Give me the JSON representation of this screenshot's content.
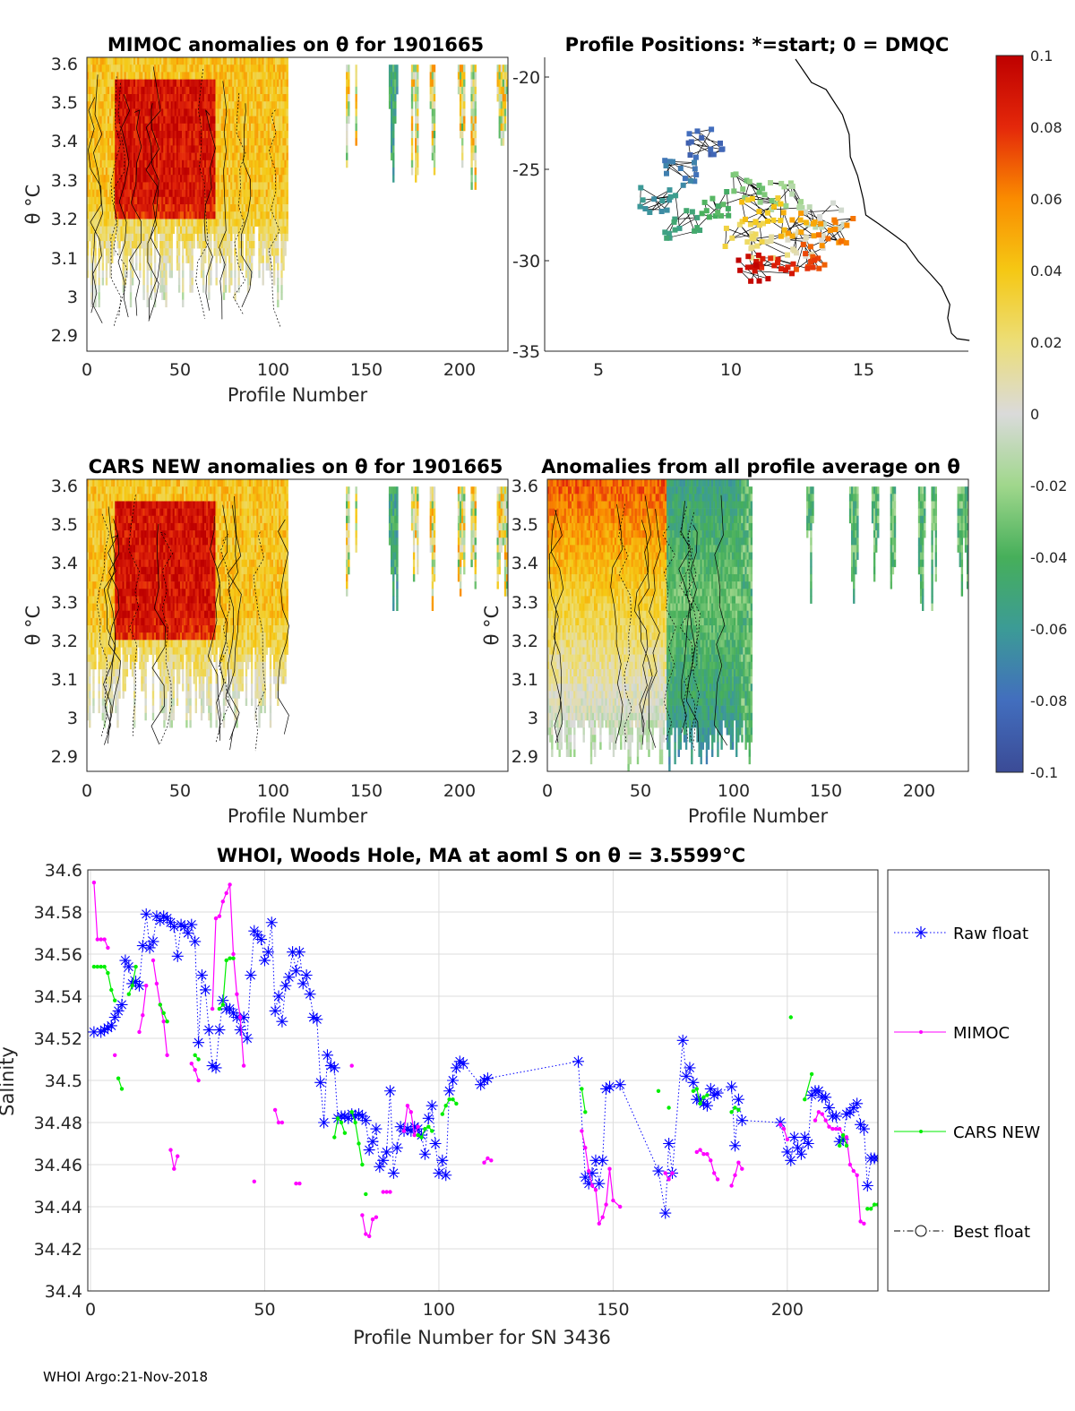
{
  "panels": {
    "mimoc": {
      "title": "MIMOC anomalies on θ  for 1901665",
      "xlabel": "Profile Number",
      "ylabel": "θ °C",
      "xticks": [
        "0",
        "50",
        "100",
        "150",
        "200"
      ],
      "yticks": [
        "3.6",
        "3.5",
        "3.4",
        "3.3",
        "3.2",
        "3.1",
        "3",
        "2.9"
      ]
    },
    "positions": {
      "title": "Profile Positions: *=start; 0 = DMQC",
      "xticks": [
        "5",
        "10",
        "15"
      ],
      "yticks": [
        "-20",
        "-25",
        "-30",
        "-35"
      ]
    },
    "cars": {
      "title": "CARS NEW anomalies on θ for 1901665",
      "xlabel": "Profile Number",
      "ylabel": "θ °C",
      "xticks": [
        "0",
        "50",
        "100",
        "150",
        "200"
      ],
      "yticks": [
        "3.6",
        "3.5",
        "3.4",
        "3.3",
        "3.2",
        "3.1",
        "3",
        "2.9"
      ]
    },
    "allavg": {
      "title": "Anomalies from all profile average on θ",
      "xlabel": "Profile Number",
      "ylabel": "θ °C",
      "xticks": [
        "0",
        "50",
        "100",
        "150",
        "200"
      ],
      "yticks": [
        "3.6",
        "3.5",
        "3.4",
        "3.3",
        "3.2",
        "3.1",
        "3",
        "2.9"
      ]
    }
  },
  "colorbar": {
    "ticks": [
      "0.1",
      "0.08",
      "0.06",
      "0.04",
      "0.02",
      "0",
      "-0.02",
      "-0.04",
      "-0.06",
      "-0.08",
      "-0.1"
    ]
  },
  "footer": "WHOI Argo:21-Nov-2018",
  "chart_data": {
    "type": "line",
    "title": "WHOI, Woods Hole, MA at aoml S on θ = 3.5599°C",
    "xlabel": "Profile Number for SN 3436",
    "ylabel": "Salinity",
    "xlim": [
      0,
      226
    ],
    "ylim": [
      34.4,
      34.6
    ],
    "xticks": [
      "0",
      "50",
      "100",
      "150",
      "200"
    ],
    "yticks": [
      "34.6",
      "34.58",
      "34.56",
      "34.54",
      "34.52",
      "34.5",
      "34.48",
      "34.46",
      "34.44",
      "34.42",
      "34.4"
    ],
    "legend": [
      "Raw float",
      "MIMOC",
      "CARS NEW",
      "Best float"
    ],
    "series": [
      {
        "name": "Raw float",
        "color": "#0000ff",
        "x": [
          1,
          3,
          4,
          5,
          6,
          7,
          8,
          9,
          10,
          11,
          12,
          13,
          14,
          15,
          16,
          17,
          18,
          19,
          20,
          21,
          22,
          23,
          24,
          25,
          26,
          27,
          28,
          29,
          30,
          31,
          32,
          33,
          34,
          35,
          36,
          37,
          38,
          39,
          40,
          41,
          42,
          43,
          44,
          45,
          46,
          47,
          48,
          49,
          50,
          51,
          52,
          53,
          54,
          55,
          56,
          57,
          58,
          59,
          60,
          61,
          62,
          63,
          64,
          65,
          66,
          67,
          68,
          69,
          70,
          71,
          72,
          73,
          74,
          75,
          76,
          77,
          78,
          79,
          80,
          81,
          82,
          83,
          84,
          85,
          86,
          87,
          88,
          89,
          90,
          91,
          92,
          93,
          94,
          95,
          96,
          97,
          98,
          99,
          100,
          101,
          102,
          103,
          104,
          105,
          106,
          107,
          112,
          113,
          114,
          140,
          142,
          143,
          144,
          145,
          146,
          147,
          148,
          149,
          152,
          163,
          165,
          166,
          167,
          170,
          171,
          172,
          173,
          174,
          175,
          176,
          177,
          178,
          179,
          180,
          184,
          185,
          186,
          187,
          198,
          200,
          201,
          202,
          203,
          204,
          205,
          206,
          207,
          208,
          209,
          210,
          211,
          212,
          213,
          214,
          215,
          216,
          217,
          218,
          219,
          220,
          221,
          222,
          223,
          224,
          225,
          226
        ],
        "y": [
          34.523,
          34.523,
          34.524,
          34.525,
          34.526,
          34.53,
          34.533,
          34.536,
          34.557,
          34.554,
          34.546,
          34.547,
          34.545,
          34.564,
          34.579,
          34.563,
          34.566,
          34.578,
          34.576,
          34.578,
          34.577,
          34.575,
          34.573,
          34.559,
          34.574,
          34.573,
          34.57,
          34.574,
          34.566,
          34.518,
          34.55,
          34.543,
          34.524,
          34.507,
          34.506,
          34.524,
          34.538,
          34.534,
          34.534,
          34.532,
          34.53,
          34.524,
          34.53,
          34.52,
          34.55,
          34.571,
          34.569,
          34.567,
          34.557,
          34.561,
          34.575,
          34.533,
          34.54,
          34.528,
          34.545,
          34.549,
          34.561,
          34.552,
          34.561,
          34.546,
          34.55,
          34.541,
          34.53,
          34.529,
          34.499,
          34.48,
          34.512,
          34.507,
          34.506,
          34.482,
          34.483,
          34.483,
          34.482,
          34.484,
          34.483,
          34.484,
          34.483,
          34.481,
          34.467,
          34.471,
          34.477,
          34.459,
          34.462,
          34.466,
          34.495,
          34.456,
          34.468,
          34.478,
          34.476,
          34.477,
          34.476,
          34.478,
          34.477,
          34.474,
          34.465,
          34.482,
          34.488,
          34.47,
          34.456,
          34.462,
          34.455,
          34.495,
          34.5,
          34.506,
          34.509,
          34.508,
          34.498,
          34.5,
          34.501,
          34.509,
          34.454,
          34.451,
          34.456,
          34.462,
          34.451,
          34.462,
          34.496,
          34.497,
          34.498,
          34.457,
          34.437,
          34.47,
          34.456,
          34.519,
          34.502,
          34.506,
          34.499,
          34.491,
          34.491,
          34.489,
          34.488,
          34.496,
          34.493,
          34.494,
          34.497,
          34.469,
          34.491,
          34.481,
          34.48,
          34.466,
          34.462,
          34.473,
          34.468,
          34.465,
          34.473,
          34.47,
          34.493,
          34.495,
          34.495,
          34.492,
          34.492,
          34.487,
          34.483,
          34.483,
          34.471,
          34.472,
          34.484,
          34.485,
          34.487,
          34.489,
          34.479,
          34.477,
          34.45,
          34.463,
          34.463,
          34.463
        ]
      },
      {
        "name": "MIMOC",
        "color": "#ff00ff",
        "segments": [
          {
            "x": [
              1,
              2,
              3,
              4,
              5
            ],
            "y": [
              34.594,
              34.567,
              34.567,
              34.567,
              34.563
            ]
          },
          {
            "x": [
              7
            ],
            "y": [
              34.512
            ]
          },
          {
            "x": [
              14,
              15,
              16
            ],
            "y": [
              34.523,
              34.531,
              34.545
            ]
          },
          {
            "x": [
              18,
              19,
              20,
              21,
              22
            ],
            "y": [
              34.557,
              34.546,
              34.536,
              34.528,
              34.512
            ]
          },
          {
            "x": [
              23,
              24,
              25
            ],
            "y": [
              34.467,
              34.458,
              34.464
            ]
          },
          {
            "x": [
              29,
              30,
              31
            ],
            "y": [
              34.508,
              34.505,
              34.5
            ]
          },
          {
            "x": [
              35,
              36,
              37,
              38,
              39,
              40,
              41,
              42,
              43,
              44
            ],
            "y": [
              34.534,
              34.577,
              34.578,
              34.585,
              34.589,
              34.593,
              34.56,
              34.541,
              34.53,
              34.507
            ]
          },
          {
            "x": [
              47
            ],
            "y": [
              34.452
            ]
          },
          {
            "x": [
              53,
              54,
              55
            ],
            "y": [
              34.486,
              34.48,
              34.48
            ]
          },
          {
            "x": [
              59,
              60
            ],
            "y": [
              34.451,
              34.451
            ]
          },
          {
            "x": [
              75
            ],
            "y": [
              34.507
            ]
          },
          {
            "x": [
              78,
              79,
              80,
              81,
              82
            ],
            "y": [
              34.436,
              34.427,
              34.426,
              34.434,
              34.435
            ]
          },
          {
            "x": [
              84,
              85,
              86
            ],
            "y": [
              34.447,
              34.447,
              34.447
            ]
          },
          {
            "x": [
              90,
              91,
              92,
              93,
              94
            ],
            "y": [
              34.476,
              34.488,
              34.485,
              34.474,
              34.478
            ]
          },
          {
            "x": [
              113,
              114,
              115
            ],
            "y": [
              34.461,
              34.463,
              34.462
            ]
          },
          {
            "x": [
              141,
              142,
              143,
              144,
              145,
              146,
              147,
              148,
              149,
              150,
              152
            ],
            "y": [
              34.476,
              34.468,
              34.457,
              34.45,
              34.448,
              34.432,
              34.435,
              34.441,
              34.458,
              34.443,
              34.44
            ]
          },
          {
            "x": [
              165,
              166,
              167
            ],
            "y": [
              34.456,
              34.453,
              34.456
            ]
          },
          {
            "x": [
              174,
              175,
              176,
              177,
              178,
              179,
              180
            ],
            "y": [
              34.466,
              34.467,
              34.465,
              34.465,
              34.462,
              34.456,
              34.453
            ]
          },
          {
            "x": [
              184,
              185,
              186,
              187
            ],
            "y": [
              34.45,
              34.455,
              34.461,
              34.458
            ]
          },
          {
            "x": [
              198,
              199,
              200
            ],
            "y": [
              34.479,
              34.477,
              34.472
            ]
          },
          {
            "x": [
              208,
              209,
              210,
              211,
              212,
              213,
              214,
              215,
              216,
              217,
              218,
              219,
              220,
              221,
              222
            ],
            "y": [
              34.481,
              34.485,
              34.484,
              34.481,
              34.478,
              34.477,
              34.477,
              34.477,
              34.474,
              34.473,
              34.46,
              34.457,
              34.455,
              34.433,
              34.432
            ]
          }
        ]
      },
      {
        "name": "CARS NEW",
        "color": "#00ee00",
        "segments": [
          {
            "x": [
              1,
              2,
              3,
              4,
              5,
              6,
              7
            ],
            "y": [
              34.554,
              34.554,
              34.554,
              34.554,
              34.551,
              34.543,
              34.538
            ]
          },
          {
            "x": [
              8,
              9
            ],
            "y": [
              34.501,
              34.496
            ]
          },
          {
            "x": [
              11,
              12,
              13
            ],
            "y": [
              34.541,
              34.545,
              34.554
            ]
          },
          {
            "x": [
              20,
              21,
              22
            ],
            "y": [
              34.536,
              34.532,
              34.528
            ]
          },
          {
            "x": [
              30,
              31
            ],
            "y": [
              34.512,
              34.51
            ]
          },
          {
            "x": [
              37,
              38,
              39,
              40,
              41
            ],
            "y": [
              34.534,
              34.536,
              34.557,
              34.558,
              34.558
            ]
          },
          {
            "x": [
              70,
              71,
              72,
              73
            ],
            "y": [
              34.473,
              34.482,
              34.48,
              34.475
            ]
          },
          {
            "x": [
              75,
              76,
              77,
              78
            ],
            "y": [
              34.485,
              34.48,
              34.47,
              34.46
            ]
          },
          {
            "x": [
              79
            ],
            "y": [
              34.446
            ]
          },
          {
            "x": [
              94,
              95,
              96,
              97,
              98
            ],
            "y": [
              34.474,
              34.473,
              34.477,
              34.478,
              34.476
            ]
          },
          {
            "x": [
              101,
              102,
              103,
              104,
              105
            ],
            "y": [
              34.484,
              34.488,
              34.491,
              34.491,
              34.489
            ]
          },
          {
            "x": [
              141,
              142
            ],
            "y": [
              34.496,
              34.485
            ]
          },
          {
            "x": [
              163
            ],
            "y": [
              34.495
            ]
          },
          {
            "x": [
              166
            ],
            "y": [
              34.487
            ]
          },
          {
            "x": [
              173,
              174,
              175,
              176,
              177
            ],
            "y": [
              34.495,
              34.496,
              34.489,
              34.492,
              34.493
            ]
          },
          {
            "x": [
              184,
              185,
              186
            ],
            "y": [
              34.485,
              34.487,
              34.486
            ]
          },
          {
            "x": [
              201
            ],
            "y": [
              34.53
            ]
          },
          {
            "x": [
              205,
              207
            ],
            "y": [
              34.491,
              34.503
            ]
          },
          {
            "x": [
              215,
              216,
              217
            ],
            "y": [
              34.469,
              34.474,
              34.469
            ]
          },
          {
            "x": [
              223,
              224,
              225,
              226
            ],
            "y": [
              34.439,
              34.439,
              34.441,
              34.441
            ]
          }
        ]
      },
      {
        "name": "Best float",
        "color": "#000000",
        "x": [],
        "y": []
      }
    ]
  }
}
